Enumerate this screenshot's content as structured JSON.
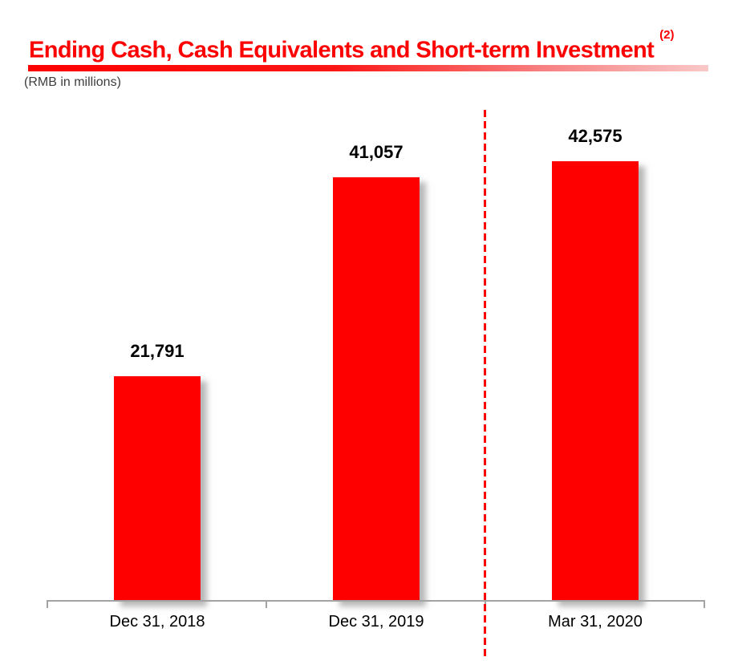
{
  "header": {
    "title": "Ending Cash, Cash Equivalents and Short-term Investment",
    "footnote_marker": "(2)",
    "units_note": "(RMB in millions)",
    "title_color": "#FE0000",
    "underline_gradient_start": "#FE0000",
    "underline_gradient_end": "#F9C8C8"
  },
  "chart_data": {
    "type": "bar",
    "title": "Ending Cash, Cash Equivalents and Short-term Investment",
    "subtitle": "(RMB in millions)",
    "categories": [
      "Dec 31, 2018",
      "Dec 31, 2019",
      "Mar 31, 2020"
    ],
    "values": [
      21791,
      41057,
      42575
    ],
    "value_labels": [
      "21,791",
      "41,057",
      "42,575"
    ],
    "bar_color": "#FE0000",
    "axis_color": "#A3A3A3",
    "label_color": "#000000",
    "gridlines": false,
    "legend_position": "none",
    "y_axis": "hidden",
    "separator_line": {
      "style": "dashed",
      "color": "#FE0000",
      "between": [
        "Dec 31, 2019",
        "Mar 31, 2020"
      ]
    }
  }
}
